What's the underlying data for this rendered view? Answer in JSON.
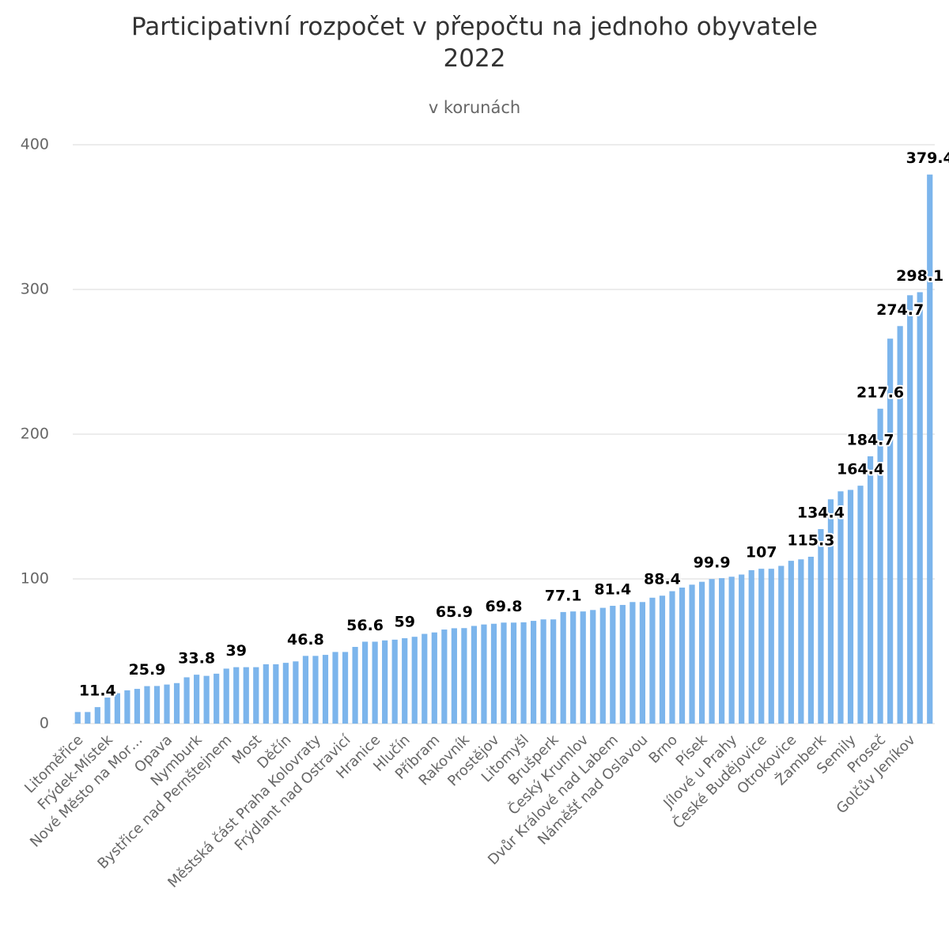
{
  "chart_data": {
    "type": "bar",
    "title": "Participativní rozpočet v přepočtu na jednoho obyvatele\n2022",
    "subtitle": "v korunách",
    "categories": [
      "Litoměřice",
      null,
      null,
      "Frýdek-Místek",
      null,
      null,
      "Nové Město na Mor…",
      null,
      null,
      "Opava",
      null,
      null,
      "Nymburk",
      null,
      null,
      "Bystřice nad Pernštejnem",
      null,
      null,
      "Most",
      null,
      null,
      "Děčín",
      null,
      null,
      "Městská část Praha Kolovraty",
      null,
      null,
      "Frýdlant nad Ostravicí",
      null,
      null,
      "Hranice",
      null,
      null,
      "Hlučín",
      null,
      null,
      "Příbram",
      null,
      null,
      "Rakovník",
      null,
      null,
      "Prostějov",
      null,
      null,
      "Litomyšl",
      null,
      null,
      "Brušperk",
      null,
      null,
      "Český Krumlov",
      null,
      null,
      "Dvůr Králové nad Labem",
      null,
      null,
      "Náměšť  nad Oslavou",
      null,
      null,
      "Brno",
      null,
      null,
      "Písek",
      null,
      null,
      "Jílové u Prahy",
      null,
      null,
      "České Budějovice",
      null,
      null,
      "Otrokovice",
      null,
      null,
      "Žamberk",
      null,
      null,
      "Semily",
      null,
      null,
      "Proseč",
      null,
      null,
      "Golčův Jeníkov",
      null,
      null
    ],
    "values": [
      8,
      8,
      11.4,
      18,
      21,
      23,
      24,
      25.9,
      26,
      27,
      28,
      32,
      33.8,
      33,
      34.5,
      38,
      39,
      39,
      39,
      41,
      41,
      42,
      43,
      46.8,
      46.8,
      47.5,
      49.5,
      49.5,
      53,
      56.6,
      56.6,
      57.5,
      58,
      59,
      60,
      62,
      63,
      65,
      65.9,
      66,
      67.5,
      68.5,
      69,
      69.8,
      69.8,
      70,
      71,
      72,
      72,
      77.1,
      77.5,
      77.5,
      78.5,
      80,
      81.4,
      82,
      84,
      84,
      87,
      88.4,
      91.5,
      94,
      96,
      98,
      99.9,
      100.5,
      101.5,
      103,
      106,
      107,
      107,
      109,
      112.5,
      113.5,
      115.3,
      134.4,
      155,
      160.5,
      161.5,
      164.4,
      184.7,
      217.6,
      266,
      274.7,
      296,
      298.1,
      379.4
    ],
    "value_labels": [
      null,
      null,
      "11.4",
      null,
      null,
      null,
      null,
      "25.9",
      null,
      null,
      null,
      null,
      "33.8",
      null,
      null,
      null,
      "39",
      null,
      null,
      null,
      null,
      null,
      null,
      "46.8",
      null,
      null,
      null,
      null,
      null,
      "56.6",
      null,
      null,
      null,
      "59",
      null,
      null,
      null,
      null,
      "65.9",
      null,
      null,
      null,
      null,
      "69.8",
      null,
      null,
      null,
      null,
      null,
      "77.1",
      null,
      null,
      null,
      null,
      "81.4",
      null,
      null,
      null,
      null,
      "88.4",
      null,
      null,
      null,
      null,
      "99.9",
      null,
      null,
      null,
      null,
      "107",
      null,
      null,
      null,
      null,
      "115.3",
      "134.4",
      null,
      null,
      null,
      "164.4",
      "184.7",
      "217.6",
      null,
      "274.7",
      null,
      "298.1",
      "379.4"
    ],
    "color": "#7cb5ec",
    "ylim": [
      0,
      400
    ],
    "yticks": [
      0,
      100,
      200,
      300,
      400
    ],
    "grid": true
  }
}
